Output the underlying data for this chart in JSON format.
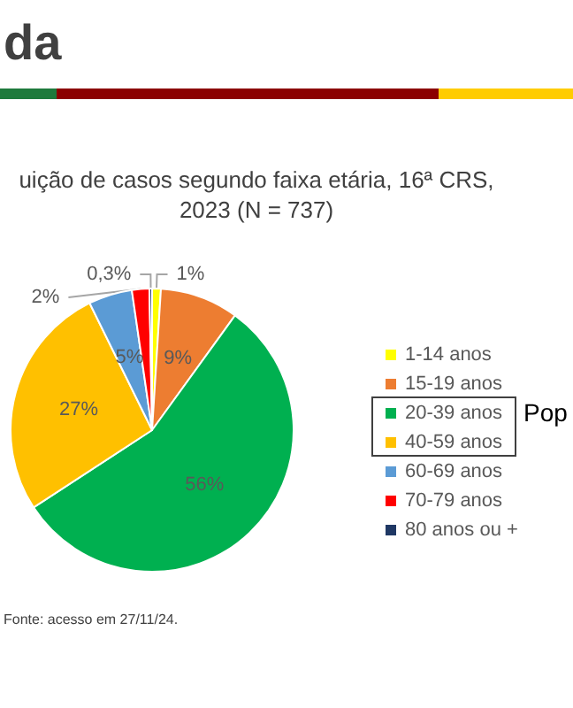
{
  "chart_data": {
    "type": "pie",
    "title": "uição de casos segundo faixa etária, 16ª CRS,\n2023 (N = 737)",
    "categories": [
      "1-14 anos",
      "15-19 anos",
      "20-39 anos",
      "40-59 anos",
      "60-69 anos",
      "70-79 anos",
      "80 anos ou +"
    ],
    "values": [
      1,
      9,
      56,
      27,
      5,
      2,
      0.3
    ],
    "colors": [
      "#ffff00",
      "#ed7d31",
      "#00b050",
      "#ffc000",
      "#5b9bd5",
      "#ff0000",
      "#1f3864"
    ],
    "value_labels": [
      "1%",
      "9%",
      "56%",
      "27%",
      "5%",
      "2%",
      "0,3%"
    ],
    "legend": "right",
    "annotations": [
      "da",
      "Pop",
      "Fonte: acesso em 27/11/24."
    ]
  }
}
